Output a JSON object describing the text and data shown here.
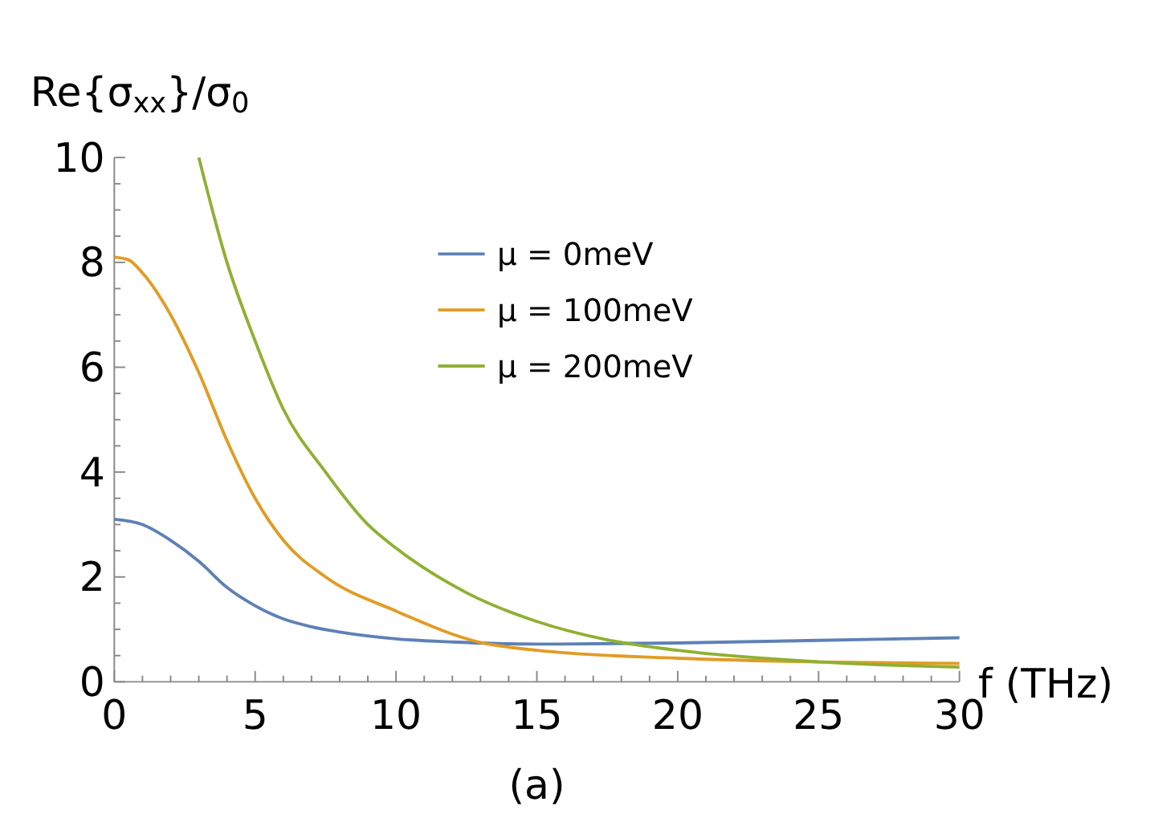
{
  "chart_data": {
    "type": "line",
    "xlabel": "f (THz)",
    "ylabel": "Re{σ$_{xx}$}/σ$_{0}$",
    "annotations": [
      "(a)"
    ],
    "xlim": [
      0,
      30
    ],
    "ylim": [
      0,
      10
    ],
    "xticks": [
      0,
      {
        "value": 1,
        "label": null
      },
      {
        "value": 2,
        "label": null
      },
      {
        "value": 3,
        "label": null
      },
      {
        "value": 4,
        "label": null
      },
      5,
      {
        "value": 6,
        "label": null
      },
      {
        "value": 7,
        "label": null
      },
      {
        "value": 8,
        "label": null
      },
      {
        "value": 9,
        "label": null
      },
      10,
      {
        "value": 11,
        "label": null
      },
      {
        "value": 12,
        "label": null
      },
      {
        "value": 13,
        "label": null
      },
      {
        "value": 14,
        "label": null
      },
      15,
      {
        "value": 16,
        "label": null
      },
      {
        "value": 17,
        "label": null
      },
      {
        "value": 18,
        "label": null
      },
      {
        "value": 19,
        "label": null
      },
      20,
      {
        "value": 21,
        "label": null
      },
      {
        "value": 22,
        "label": null
      },
      {
        "value": 23,
        "label": null
      },
      {
        "value": 24,
        "label": null
      },
      25,
      {
        "value": 26,
        "label": null
      },
      {
        "value": 27,
        "label": null
      },
      {
        "value": 28,
        "label": null
      },
      {
        "value": 29,
        "label": null
      },
      30
    ],
    "yticks": [
      0,
      {
        "value": 0.5,
        "label": null
      },
      {
        "value": 1,
        "label": null
      },
      {
        "value": 1.5,
        "label": null
      },
      2,
      {
        "value": 2.5,
        "label": null
      },
      {
        "value": 3,
        "label": null
      },
      {
        "value": 3.5,
        "label": null
      },
      4,
      {
        "value": 4.5,
        "label": null
      },
      {
        "value": 5,
        "label": null
      },
      {
        "value": 5.5,
        "label": null
      },
      6,
      {
        "value": 6.5,
        "label": null
      },
      {
        "value": 7,
        "label": null
      },
      {
        "value": 7.5,
        "label": null
      },
      8,
      {
        "value": 8.5,
        "label": null
      },
      {
        "value": 9,
        "label": null
      },
      {
        "value": 9.5,
        "label": null
      },
      10
    ],
    "grid": false,
    "legend": "top",
    "marker": "none",
    "line_style": "solid",
    "series": [
      {
        "name": "μ = 0meV",
        "color": "#5e81b5",
        "x": [
          0,
          1,
          2,
          3,
          4,
          5,
          6,
          7,
          8,
          10,
          12,
          15,
          20,
          25,
          30
        ],
        "values": [
          3.1,
          3.0,
          2.7,
          2.3,
          1.8,
          1.45,
          1.2,
          1.05,
          0.95,
          0.82,
          0.76,
          0.72,
          0.74,
          0.79,
          0.84
        ]
      },
      {
        "name": "μ = 100meV",
        "color": "#e19c24",
        "x": [
          0,
          0.5,
          1,
          2,
          3,
          4,
          5,
          6,
          7.5,
          10,
          13,
          15,
          20,
          25,
          30
        ],
        "values": [
          8.1,
          8.05,
          7.8,
          7.0,
          5.9,
          4.6,
          3.5,
          2.7,
          2.0,
          1.35,
          0.75,
          0.6,
          0.45,
          0.38,
          0.35
        ]
      },
      {
        "name": "μ = 200meV",
        "color": "#8fb032",
        "x": [
          3,
          4,
          5,
          6,
          7.5,
          9,
          10,
          12.5,
          15,
          17.5,
          20,
          25,
          30
        ],
        "values": [
          10,
          8.0,
          6.5,
          5.2,
          4.0,
          3.0,
          2.55,
          1.7,
          1.15,
          0.8,
          0.6,
          0.38,
          0.28
        ]
      }
    ]
  }
}
